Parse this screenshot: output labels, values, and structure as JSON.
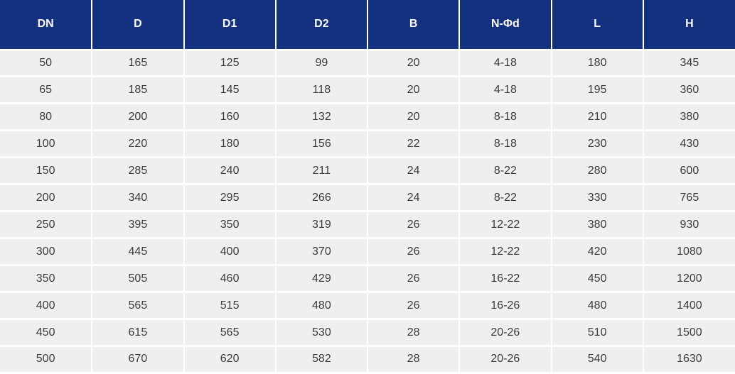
{
  "colors": {
    "header_bg": "#14317f",
    "header_text": "#ffffff",
    "row_bg": "#efeff0",
    "grid_border": "#ffffff",
    "cell_text": "#3e3a39"
  },
  "chart_data": {
    "type": "table",
    "title": "",
    "columns": [
      "DN",
      "D",
      "D1",
      "D2",
      "B",
      "N-Φd",
      "L",
      "H"
    ],
    "rows": [
      [
        "50",
        "165",
        "125",
        "99",
        "20",
        "4-18",
        "180",
        "345"
      ],
      [
        "65",
        "185",
        "145",
        "118",
        "20",
        "4-18",
        "195",
        "360"
      ],
      [
        "80",
        "200",
        "160",
        "132",
        "20",
        "8-18",
        "210",
        "380"
      ],
      [
        "100",
        "220",
        "180",
        "156",
        "22",
        "8-18",
        "230",
        "430"
      ],
      [
        "150",
        "285",
        "240",
        "211",
        "24",
        "8-22",
        "280",
        "600"
      ],
      [
        "200",
        "340",
        "295",
        "266",
        "24",
        "8-22",
        "330",
        "765"
      ],
      [
        "250",
        "395",
        "350",
        "319",
        "26",
        "12-22",
        "380",
        "930"
      ],
      [
        "300",
        "445",
        "400",
        "370",
        "26",
        "12-22",
        "420",
        "1080"
      ],
      [
        "350",
        "505",
        "460",
        "429",
        "26",
        "16-22",
        "450",
        "1200"
      ],
      [
        "400",
        "565",
        "515",
        "480",
        "26",
        "16-26",
        "480",
        "1400"
      ],
      [
        "450",
        "615",
        "565",
        "530",
        "28",
        "20-26",
        "510",
        "1500"
      ],
      [
        "500",
        "670",
        "620",
        "582",
        "28",
        "20-26",
        "540",
        "1630"
      ]
    ],
    "layout": {
      "grid": true,
      "header_position": "top",
      "cell_alignment": "center"
    }
  }
}
